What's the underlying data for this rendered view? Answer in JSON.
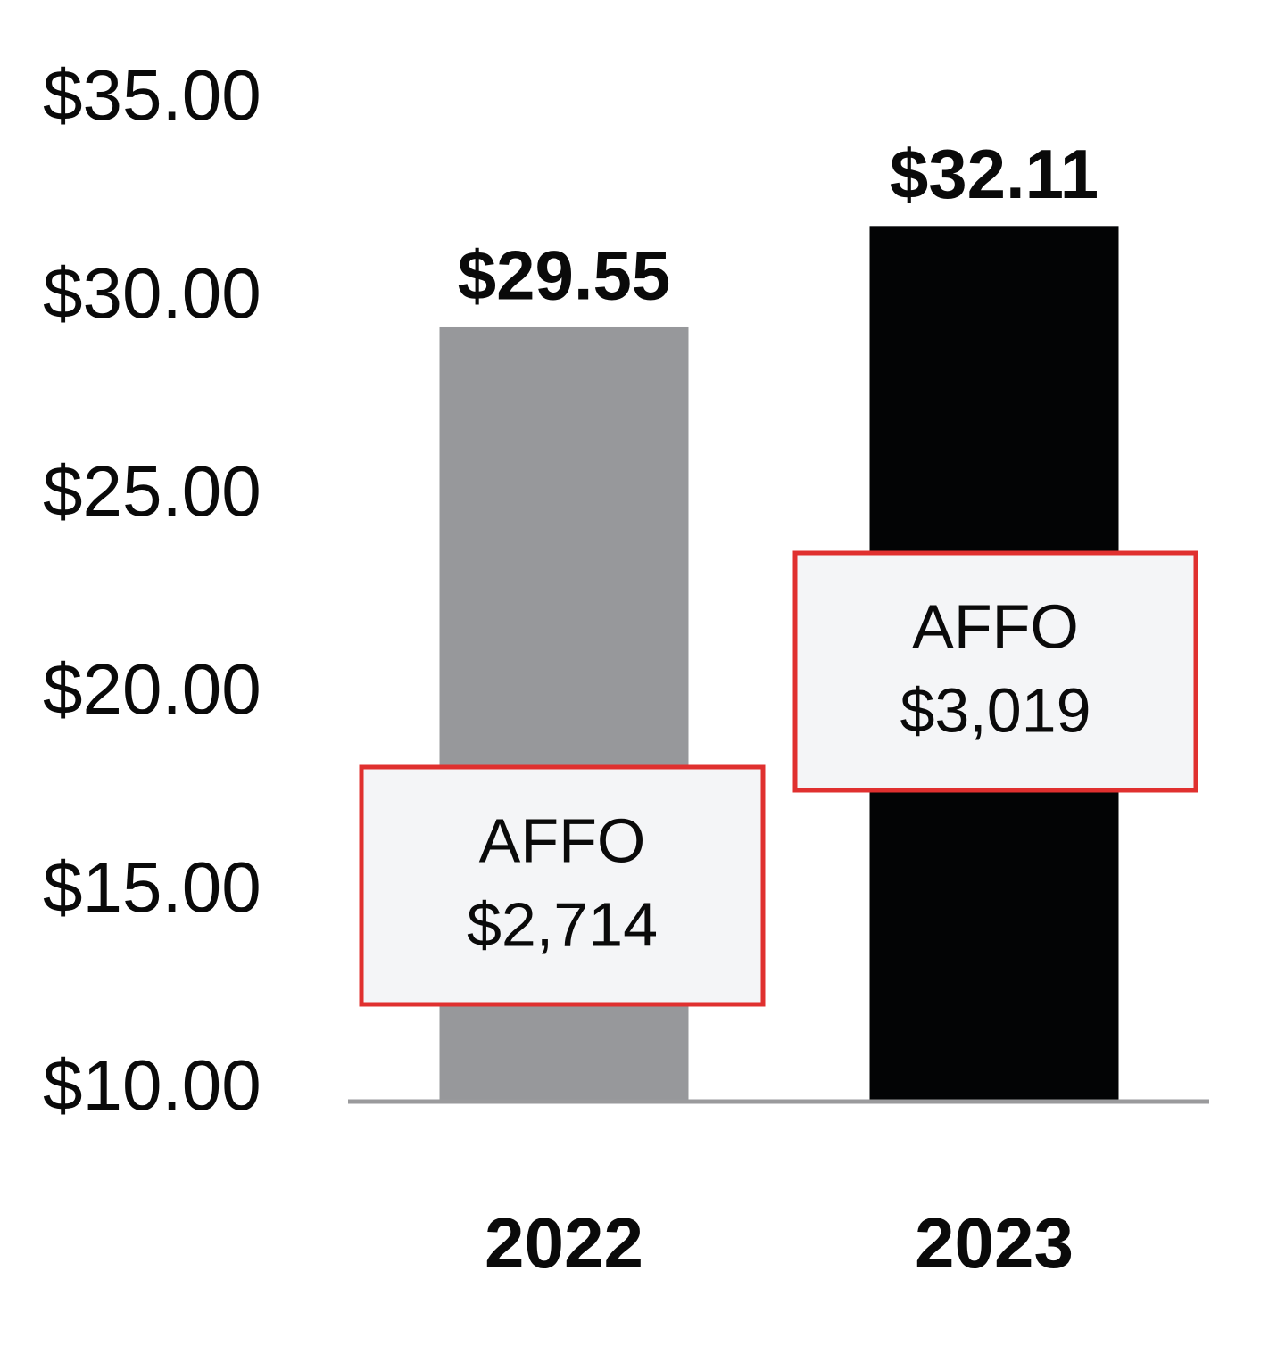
{
  "chart_data": {
    "type": "bar",
    "categories": [
      "2022",
      "2023"
    ],
    "values": [
      29.55,
      32.11
    ],
    "value_labels": [
      "$29.55",
      "$32.11"
    ],
    "colors": [
      "#97989b",
      "#030405"
    ],
    "ylim": [
      10,
      35
    ],
    "yticks": [
      {
        "value": 10,
        "label": "$10.00"
      },
      {
        "value": 15,
        "label": "$15.00"
      },
      {
        "value": 20,
        "label": "$20.00"
      },
      {
        "value": 25,
        "label": "$25.00"
      },
      {
        "value": 30,
        "label": "$30.00"
      },
      {
        "value": 35,
        "label": "$35.00"
      }
    ],
    "grid": false,
    "annotations": [
      {
        "title": "AFFO",
        "text": "$2,714"
      },
      {
        "title": "AFFO",
        "text": "$3,019"
      }
    ]
  }
}
